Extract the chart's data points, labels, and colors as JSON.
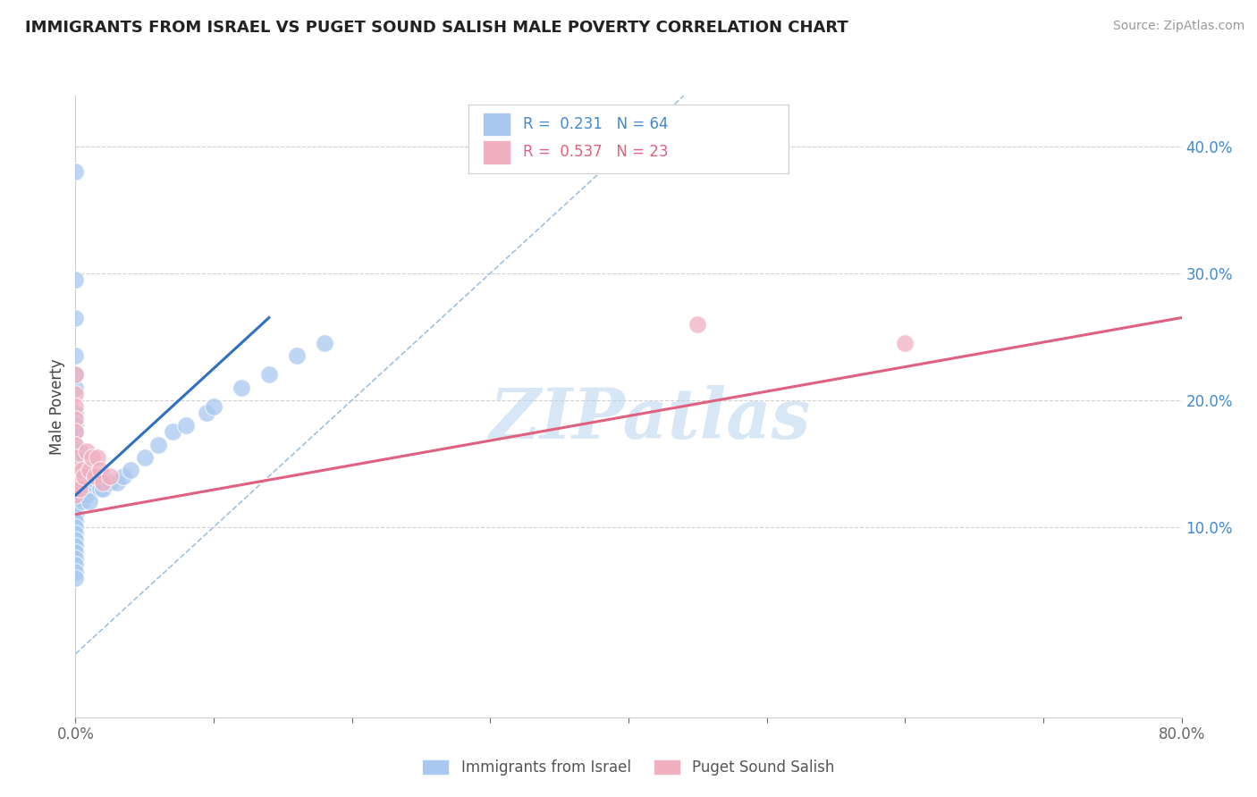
{
  "title": "IMMIGRANTS FROM ISRAEL VS PUGET SOUND SALISH MALE POVERTY CORRELATION CHART",
  "source": "Source: ZipAtlas.com",
  "ylabel": "Male Poverty",
  "xlim": [
    0.0,
    0.8
  ],
  "ylim": [
    -0.05,
    0.44
  ],
  "yticks_right": [
    0.1,
    0.2,
    0.3,
    0.4
  ],
  "ytick_right_labels": [
    "10.0%",
    "20.0%",
    "30.0%",
    "40.0%"
  ],
  "color_blue": "#a8c8f0",
  "color_pink": "#f0b0c0",
  "line_blue": "#3070c0",
  "line_pink": "#e06080",
  "line_diag_color": "#a0c0e0",
  "watermark": "ZIPatlas",
  "background_color": "#ffffff",
  "grid_color": "#d0d0d0",
  "blue_scatter_x": [
    0.0,
    0.0,
    0.0,
    0.0,
    0.0,
    0.0,
    0.0,
    0.0,
    0.0,
    0.0,
    0.0,
    0.0,
    0.0,
    0.0,
    0.0,
    0.0,
    0.0,
    0.0,
    0.0,
    0.0,
    0.0,
    0.0,
    0.0,
    0.0,
    0.0,
    0.0,
    0.0,
    0.0,
    0.0,
    0.0,
    0.002,
    0.003,
    0.003,
    0.004,
    0.004,
    0.005,
    0.005,
    0.005,
    0.006,
    0.007,
    0.008,
    0.009,
    0.01,
    0.01,
    0.01,
    0.012,
    0.015,
    0.016,
    0.018,
    0.02,
    0.025,
    0.03,
    0.035,
    0.04,
    0.05,
    0.06,
    0.07,
    0.08,
    0.095,
    0.1,
    0.12,
    0.14,
    0.16,
    0.18
  ],
  "blue_scatter_y": [
    0.38,
    0.295,
    0.265,
    0.235,
    0.22,
    0.21,
    0.19,
    0.18,
    0.175,
    0.165,
    0.155,
    0.15,
    0.145,
    0.14,
    0.135,
    0.13,
    0.125,
    0.12,
    0.115,
    0.11,
    0.105,
    0.1,
    0.095,
    0.09,
    0.085,
    0.08,
    0.075,
    0.07,
    0.065,
    0.06,
    0.135,
    0.16,
    0.14,
    0.14,
    0.13,
    0.14,
    0.13,
    0.12,
    0.135,
    0.14,
    0.125,
    0.135,
    0.14,
    0.13,
    0.12,
    0.135,
    0.14,
    0.135,
    0.13,
    0.13,
    0.135,
    0.135,
    0.14,
    0.145,
    0.155,
    0.165,
    0.175,
    0.18,
    0.19,
    0.195,
    0.21,
    0.22,
    0.235,
    0.245
  ],
  "pink_scatter_x": [
    0.0,
    0.0,
    0.0,
    0.0,
    0.0,
    0.0,
    0.0,
    0.0,
    0.0,
    0.0,
    0.003,
    0.005,
    0.006,
    0.008,
    0.01,
    0.012,
    0.014,
    0.016,
    0.018,
    0.02,
    0.025,
    0.45,
    0.6
  ],
  "pink_scatter_y": [
    0.22,
    0.205,
    0.195,
    0.185,
    0.175,
    0.165,
    0.155,
    0.145,
    0.135,
    0.125,
    0.13,
    0.145,
    0.14,
    0.16,
    0.145,
    0.155,
    0.14,
    0.155,
    0.145,
    0.135,
    0.14,
    0.26,
    0.245
  ],
  "blue_line_x": [
    0.0,
    0.14
  ],
  "blue_line_y": [
    0.125,
    0.265
  ],
  "pink_line_x": [
    0.0,
    0.8
  ],
  "pink_line_y": [
    0.11,
    0.265
  ],
  "diag_line_x": [
    0.0,
    0.44
  ],
  "diag_line_y": [
    0.0,
    0.44
  ]
}
